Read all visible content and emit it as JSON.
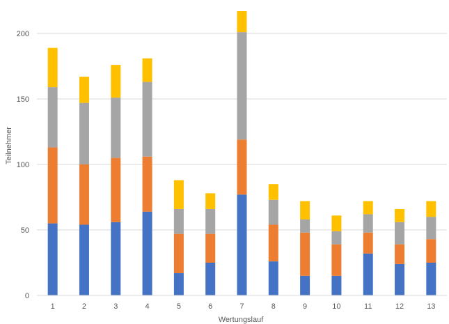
{
  "chart_data": {
    "type": "bar",
    "stacked": true,
    "xlabel": "Wertungslauf",
    "ylabel": "Teilnehmer",
    "ylim": [
      0,
      200
    ],
    "yticks": [
      0,
      50,
      100,
      150,
      200
    ],
    "grid": "horizontal",
    "legend": "none",
    "categories": [
      "1",
      "2",
      "3",
      "4",
      "5",
      "6",
      "7",
      "8",
      "9",
      "10",
      "11",
      "12",
      "13"
    ],
    "series": [
      {
        "color": "#4472c4",
        "values": [
          55,
          54,
          56,
          64,
          17,
          25,
          77,
          26,
          15,
          15,
          32,
          24,
          25
        ]
      },
      {
        "color": "#ed7d31",
        "values": [
          58,
          46,
          49,
          42,
          30,
          22,
          42,
          28,
          33,
          24,
          16,
          15,
          18
        ]
      },
      {
        "color": "#a5a5a5",
        "values": [
          46,
          47,
          46,
          57,
          19,
          19,
          82,
          19,
          10,
          10,
          14,
          17,
          17
        ]
      },
      {
        "color": "#ffc000",
        "values": [
          30,
          20,
          25,
          18,
          22,
          12,
          16,
          12,
          14,
          12,
          10,
          10,
          12
        ]
      }
    ]
  }
}
